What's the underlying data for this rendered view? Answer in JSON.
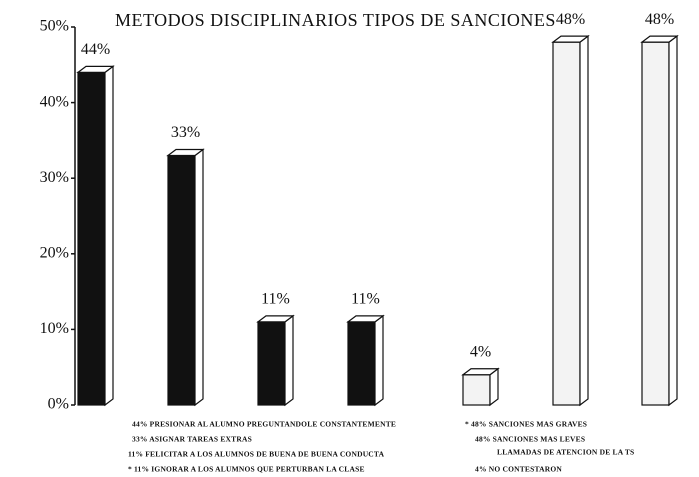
{
  "chart_data": {
    "type": "bar",
    "title": "METODOS DISCIPLINARIOS TIPOS DE SANCIONES",
    "categories": [
      null,
      null,
      null,
      null,
      null,
      null,
      null
    ],
    "values": [
      44,
      33,
      11,
      11,
      4,
      48,
      48
    ],
    "value_labels": [
      "44%",
      "33%",
      "11%",
      "11%",
      "4%",
      "48%",
      "48%"
    ],
    "colors": [
      "#111111",
      "#111111",
      "#111111",
      "#111111",
      "#f3f3f3",
      "#f3f3f3",
      "#f3f3f3"
    ],
    "ylim": [
      0,
      50
    ],
    "yticks": [
      {
        "value": 0,
        "label": "0%"
      },
      {
        "value": 10,
        "label": "10%"
      },
      {
        "value": 20,
        "label": "20%"
      },
      {
        "value": 30,
        "label": "30%"
      },
      {
        "value": 40,
        "label": "40%"
      },
      {
        "value": 50,
        "label": "50%"
      }
    ],
    "grid": false,
    "notes": [
      "44% PRESIONAR AL ALUMNO  PREGUNTANDOLE CONSTANTEMENTE",
      "33% ASIGNAR TAREAS EXTRAS",
      "11% FELICITAR A LOS ALUMNOS DE BUENA DE BUENA CONDUCTA",
      "* 11% IGNORAR A LOS ALUMNOS QUE PERTURBAN LA CLASE",
      "* 48% SANCIONES MAS GRAVES",
      "48% SANCIONES MAS LEVES",
      "LLAMADAS DE ATENCION DE LA TS",
      "4% NO CONTESTARON"
    ]
  }
}
